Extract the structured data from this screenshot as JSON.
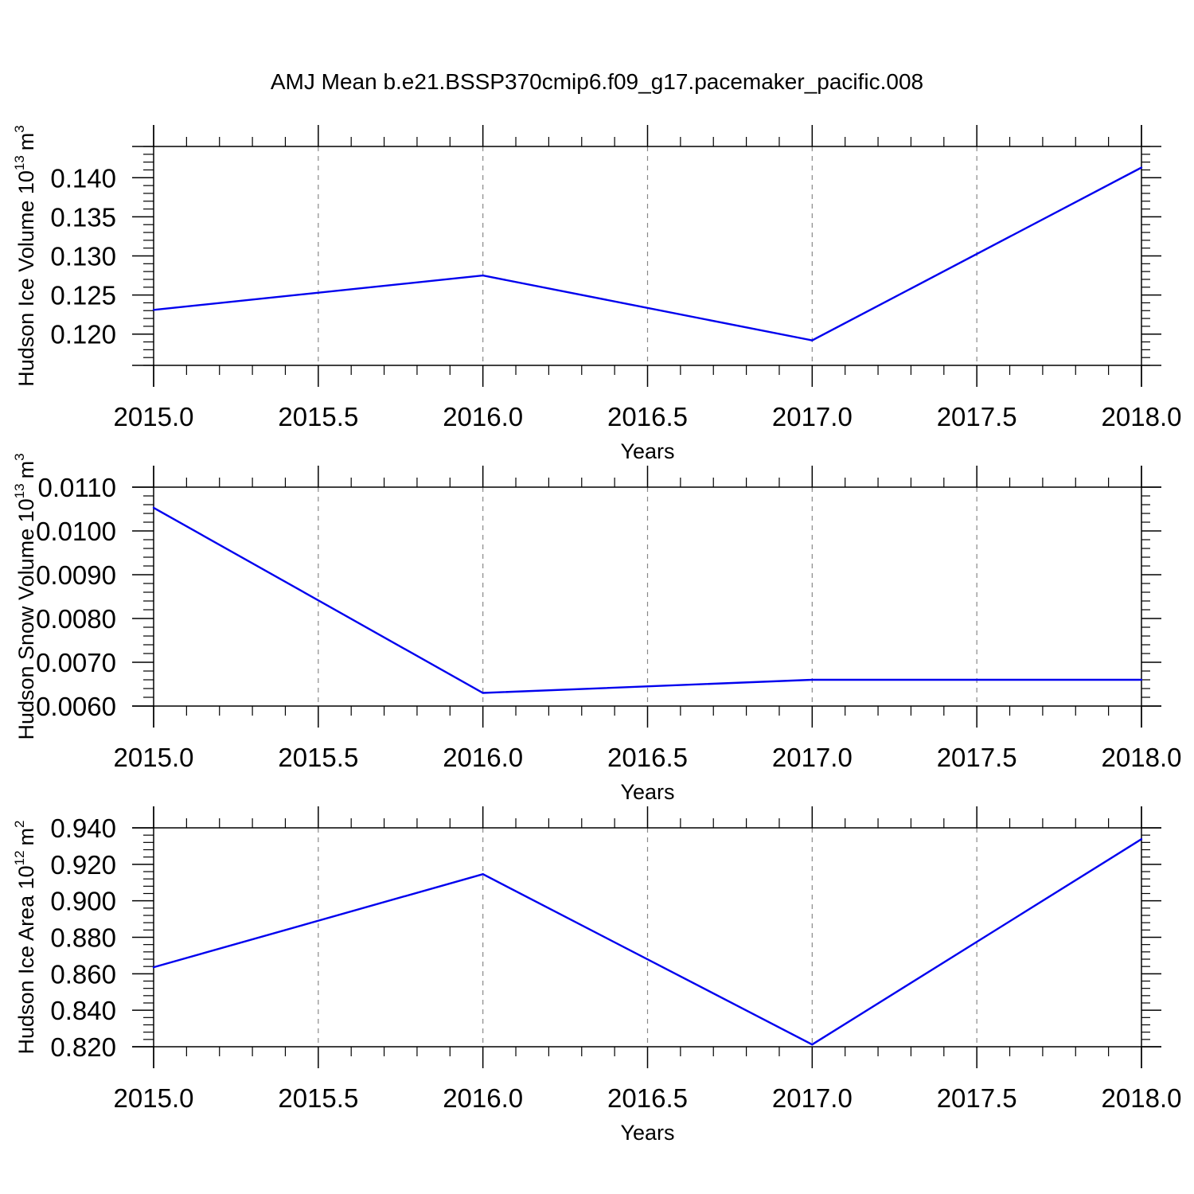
{
  "title": "AMJ Mean b.e21.BSSP370cmip6.f09_g17.pacemaker_pacific.008",
  "colors": {
    "line": "#0000ee",
    "axis": "#000000",
    "grid": "#888888"
  },
  "chart_data": [
    {
      "type": "line",
      "ylabel": {
        "main": "Hudson Ice Volume 10",
        "exp": "13",
        "unit": "m",
        "unit_exp": "3"
      },
      "xlabel": "Years",
      "xlim": [
        2015.0,
        2018.0
      ],
      "ylim": [
        0.116,
        0.144
      ],
      "x_ticks": [
        "2015.0",
        "2015.5",
        "2016.0",
        "2016.5",
        "2017.0",
        "2017.5",
        "2018.0"
      ],
      "y_ticks": [
        "0.120",
        "0.125",
        "0.130",
        "0.135",
        "0.140"
      ],
      "x": [
        2015,
        2016,
        2017,
        2018
      ],
      "values": [
        0.1231,
        0.1275,
        0.1192,
        0.1413
      ],
      "grid": "x dashed"
    },
    {
      "type": "line",
      "ylabel": {
        "main": "Hudson Snow Volume 10",
        "exp": "13",
        "unit": "m",
        "unit_exp": "3"
      },
      "xlabel": "Years",
      "xlim": [
        2015.0,
        2018.0
      ],
      "ylim": [
        0.006,
        0.011
      ],
      "x_ticks": [
        "2015.0",
        "2015.5",
        "2016.0",
        "2016.5",
        "2017.0",
        "2017.5",
        "2018.0"
      ],
      "y_ticks": [
        "0.0060",
        "0.0070",
        "0.0080",
        "0.0090",
        "0.0100",
        "0.0110"
      ],
      "x": [
        2015,
        2016,
        2017,
        2018
      ],
      "values": [
        0.01053,
        0.0063,
        0.0066,
        0.0066
      ],
      "grid": "x dashed"
    },
    {
      "type": "line",
      "ylabel": {
        "main": "Hudson Ice Area 10",
        "exp": "12",
        "unit": "m",
        "unit_exp": "2"
      },
      "xlabel": "Years",
      "xlim": [
        2015.0,
        2018.0
      ],
      "ylim": [
        0.82,
        0.94
      ],
      "x_ticks": [
        "2015.0",
        "2015.5",
        "2016.0",
        "2016.5",
        "2017.0",
        "2017.5",
        "2018.0"
      ],
      "y_ticks": [
        "0.820",
        "0.840",
        "0.860",
        "0.880",
        "0.900",
        "0.920",
        "0.940"
      ],
      "x": [
        2015,
        2016,
        2017,
        2018
      ],
      "values": [
        0.8636,
        0.9146,
        0.8212,
        0.9338
      ],
      "grid": "x dashed"
    }
  ]
}
